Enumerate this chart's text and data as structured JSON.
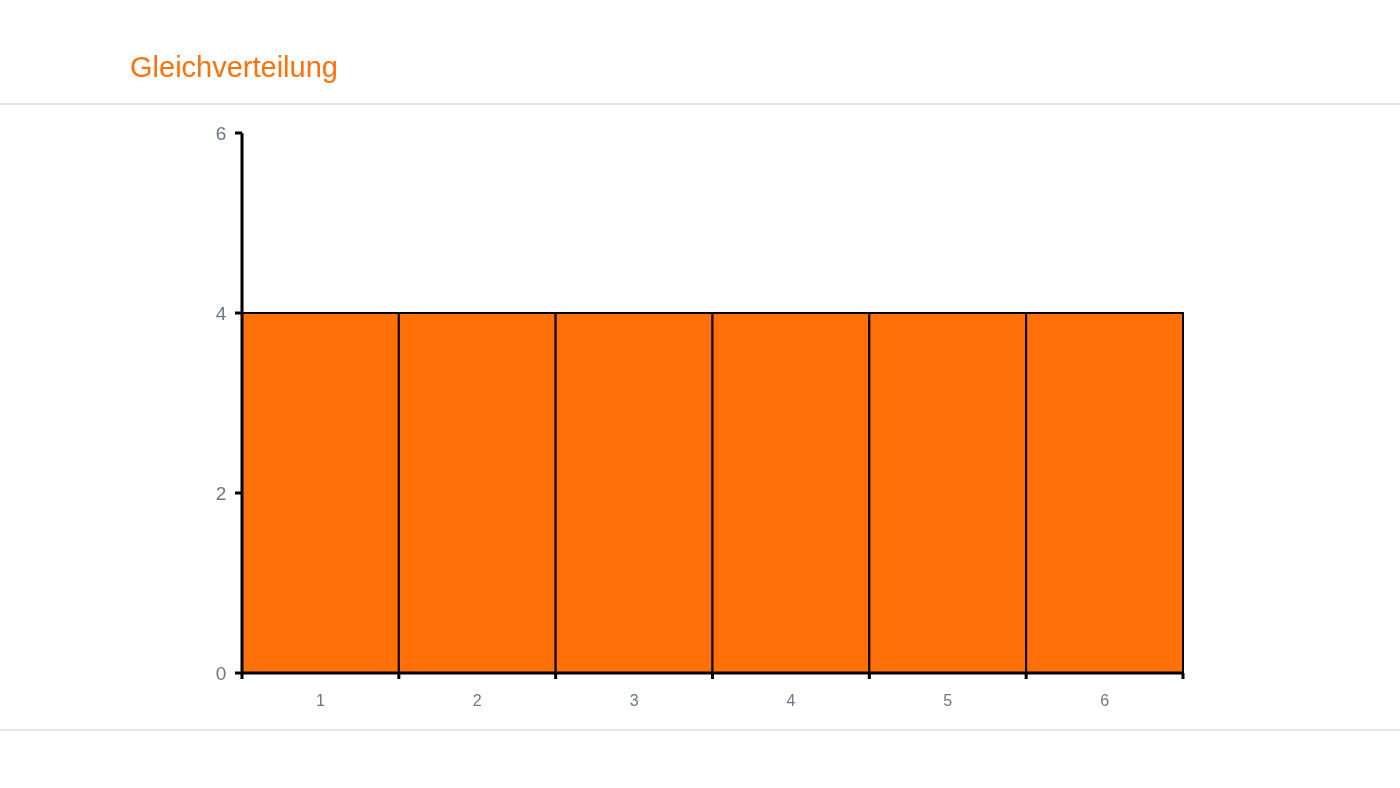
{
  "chart_data": {
    "type": "bar",
    "title": "Gleichverteilung",
    "categories": [
      "1",
      "2",
      "3",
      "4",
      "5",
      "6"
    ],
    "values": [
      4,
      4,
      4,
      4,
      4,
      4
    ],
    "color": "#ff7008",
    "ylim": [
      0,
      6
    ],
    "yticks": [
      0,
      2,
      4,
      6
    ]
  }
}
